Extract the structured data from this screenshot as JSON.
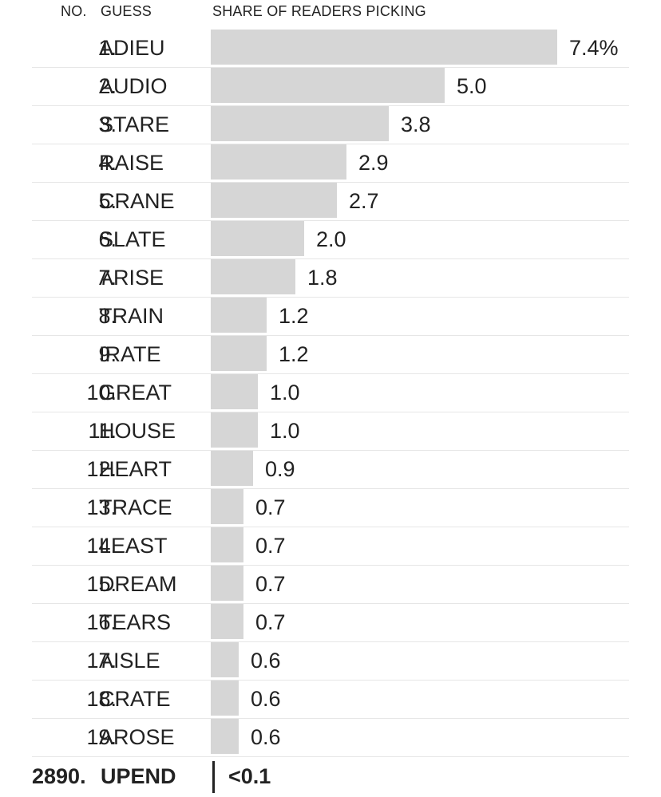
{
  "chart_data": {
    "type": "bar",
    "orientation": "horizontal",
    "headers": {
      "rank": "NO.",
      "guess": "GUESS",
      "share": "SHARE OF READERS PICKING"
    },
    "unit_suffix": "%",
    "rows": [
      {
        "rank": "1.",
        "word": "ADIEU",
        "value": 7.4,
        "label": "7.4%"
      },
      {
        "rank": "2.",
        "word": "AUDIO",
        "value": 5.0,
        "label": "5.0"
      },
      {
        "rank": "3.",
        "word": "STARE",
        "value": 3.8,
        "label": "3.8"
      },
      {
        "rank": "4.",
        "word": "RAISE",
        "value": 2.9,
        "label": "2.9"
      },
      {
        "rank": "5.",
        "word": "CRANE",
        "value": 2.7,
        "label": "2.7"
      },
      {
        "rank": "6.",
        "word": "SLATE",
        "value": 2.0,
        "label": "2.0"
      },
      {
        "rank": "7.",
        "word": "ARISE",
        "value": 1.8,
        "label": "1.8"
      },
      {
        "rank": "8.",
        "word": "TRAIN",
        "value": 1.2,
        "label": "1.2"
      },
      {
        "rank": "9.",
        "word": "IRATE",
        "value": 1.2,
        "label": "1.2"
      },
      {
        "rank": "10.",
        "word": "GREAT",
        "value": 1.0,
        "label": "1.0"
      },
      {
        "rank": "11.",
        "word": "HOUSE",
        "value": 1.0,
        "label": "1.0"
      },
      {
        "rank": "12.",
        "word": "HEART",
        "value": 0.9,
        "label": "0.9"
      },
      {
        "rank": "13.",
        "word": "TRACE",
        "value": 0.7,
        "label": "0.7"
      },
      {
        "rank": "14.",
        "word": "LEAST",
        "value": 0.7,
        "label": "0.7"
      },
      {
        "rank": "15.",
        "word": "DREAM",
        "value": 0.7,
        "label": "0.7"
      },
      {
        "rank": "16.",
        "word": "TEARS",
        "value": 0.7,
        "label": "0.7"
      },
      {
        "rank": "17.",
        "word": "AISLE",
        "value": 0.6,
        "label": "0.6"
      },
      {
        "rank": "18.",
        "word": "CRATE",
        "value": 0.6,
        "label": "0.6"
      },
      {
        "rank": "19.",
        "word": "AROSE",
        "value": 0.6,
        "label": "0.6"
      }
    ],
    "highlight": {
      "rank": "2890.",
      "word": "UPEND",
      "value": 0.05,
      "label": "<0.1"
    },
    "bar_color": "#d6d6d6",
    "text_color": "#222222",
    "grid": false
  }
}
